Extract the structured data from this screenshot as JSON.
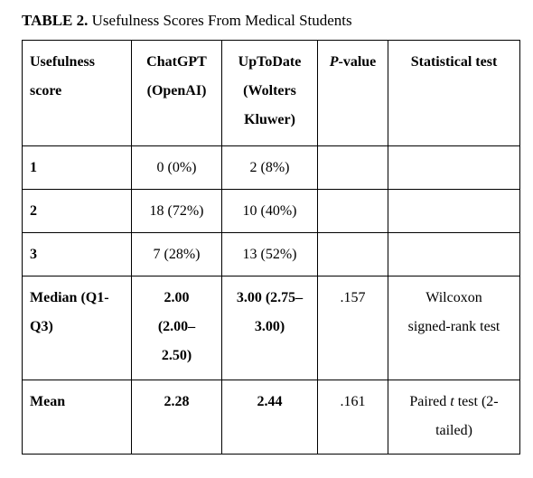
{
  "caption": {
    "label": "TABLE 2.",
    "title": "Usefulness Scores From Medical Students"
  },
  "headers": {
    "score_line1": "Usefulness",
    "score_line2": "score",
    "chatgpt_line1": "ChatGPT",
    "chatgpt_line2": "(OpenAI)",
    "uptodate_line1": "UpToDate",
    "uptodate_line2": "(Wolters",
    "uptodate_line3": "Kluwer)",
    "pvalue_italic": "P",
    "pvalue_rest": "-value",
    "test": "Statistical test"
  },
  "rows": [
    {
      "score": "1",
      "chatgpt": "0 (0%)",
      "uptodate": "2 (8%)",
      "pvalue": "",
      "test": ""
    },
    {
      "score": "2",
      "chatgpt": "18 (72%)",
      "uptodate": "10 (40%)",
      "pvalue": "",
      "test": ""
    },
    {
      "score": "3",
      "chatgpt": "7 (28%)",
      "uptodate": "13 (52%)",
      "pvalue": "",
      "test": ""
    }
  ],
  "median": {
    "label_line1": "Median (Q1-",
    "label_line2": "Q3)",
    "chatgpt_line1": "2.00",
    "chatgpt_line2": "(2.00–",
    "chatgpt_line3": "2.50)",
    "uptodate_line1": "3.00 (2.75–",
    "uptodate_line2": "3.00)",
    "pvalue": ".157",
    "test_line1": "Wilcoxon",
    "test_line2": "signed-rank test"
  },
  "mean": {
    "label": "Mean",
    "chatgpt": "2.28",
    "uptodate": "2.44",
    "pvalue": ".161",
    "test_prefix": "Paired ",
    "test_italic": "t",
    "test_suffix": " test (2-",
    "test_line2": "tailed)"
  }
}
